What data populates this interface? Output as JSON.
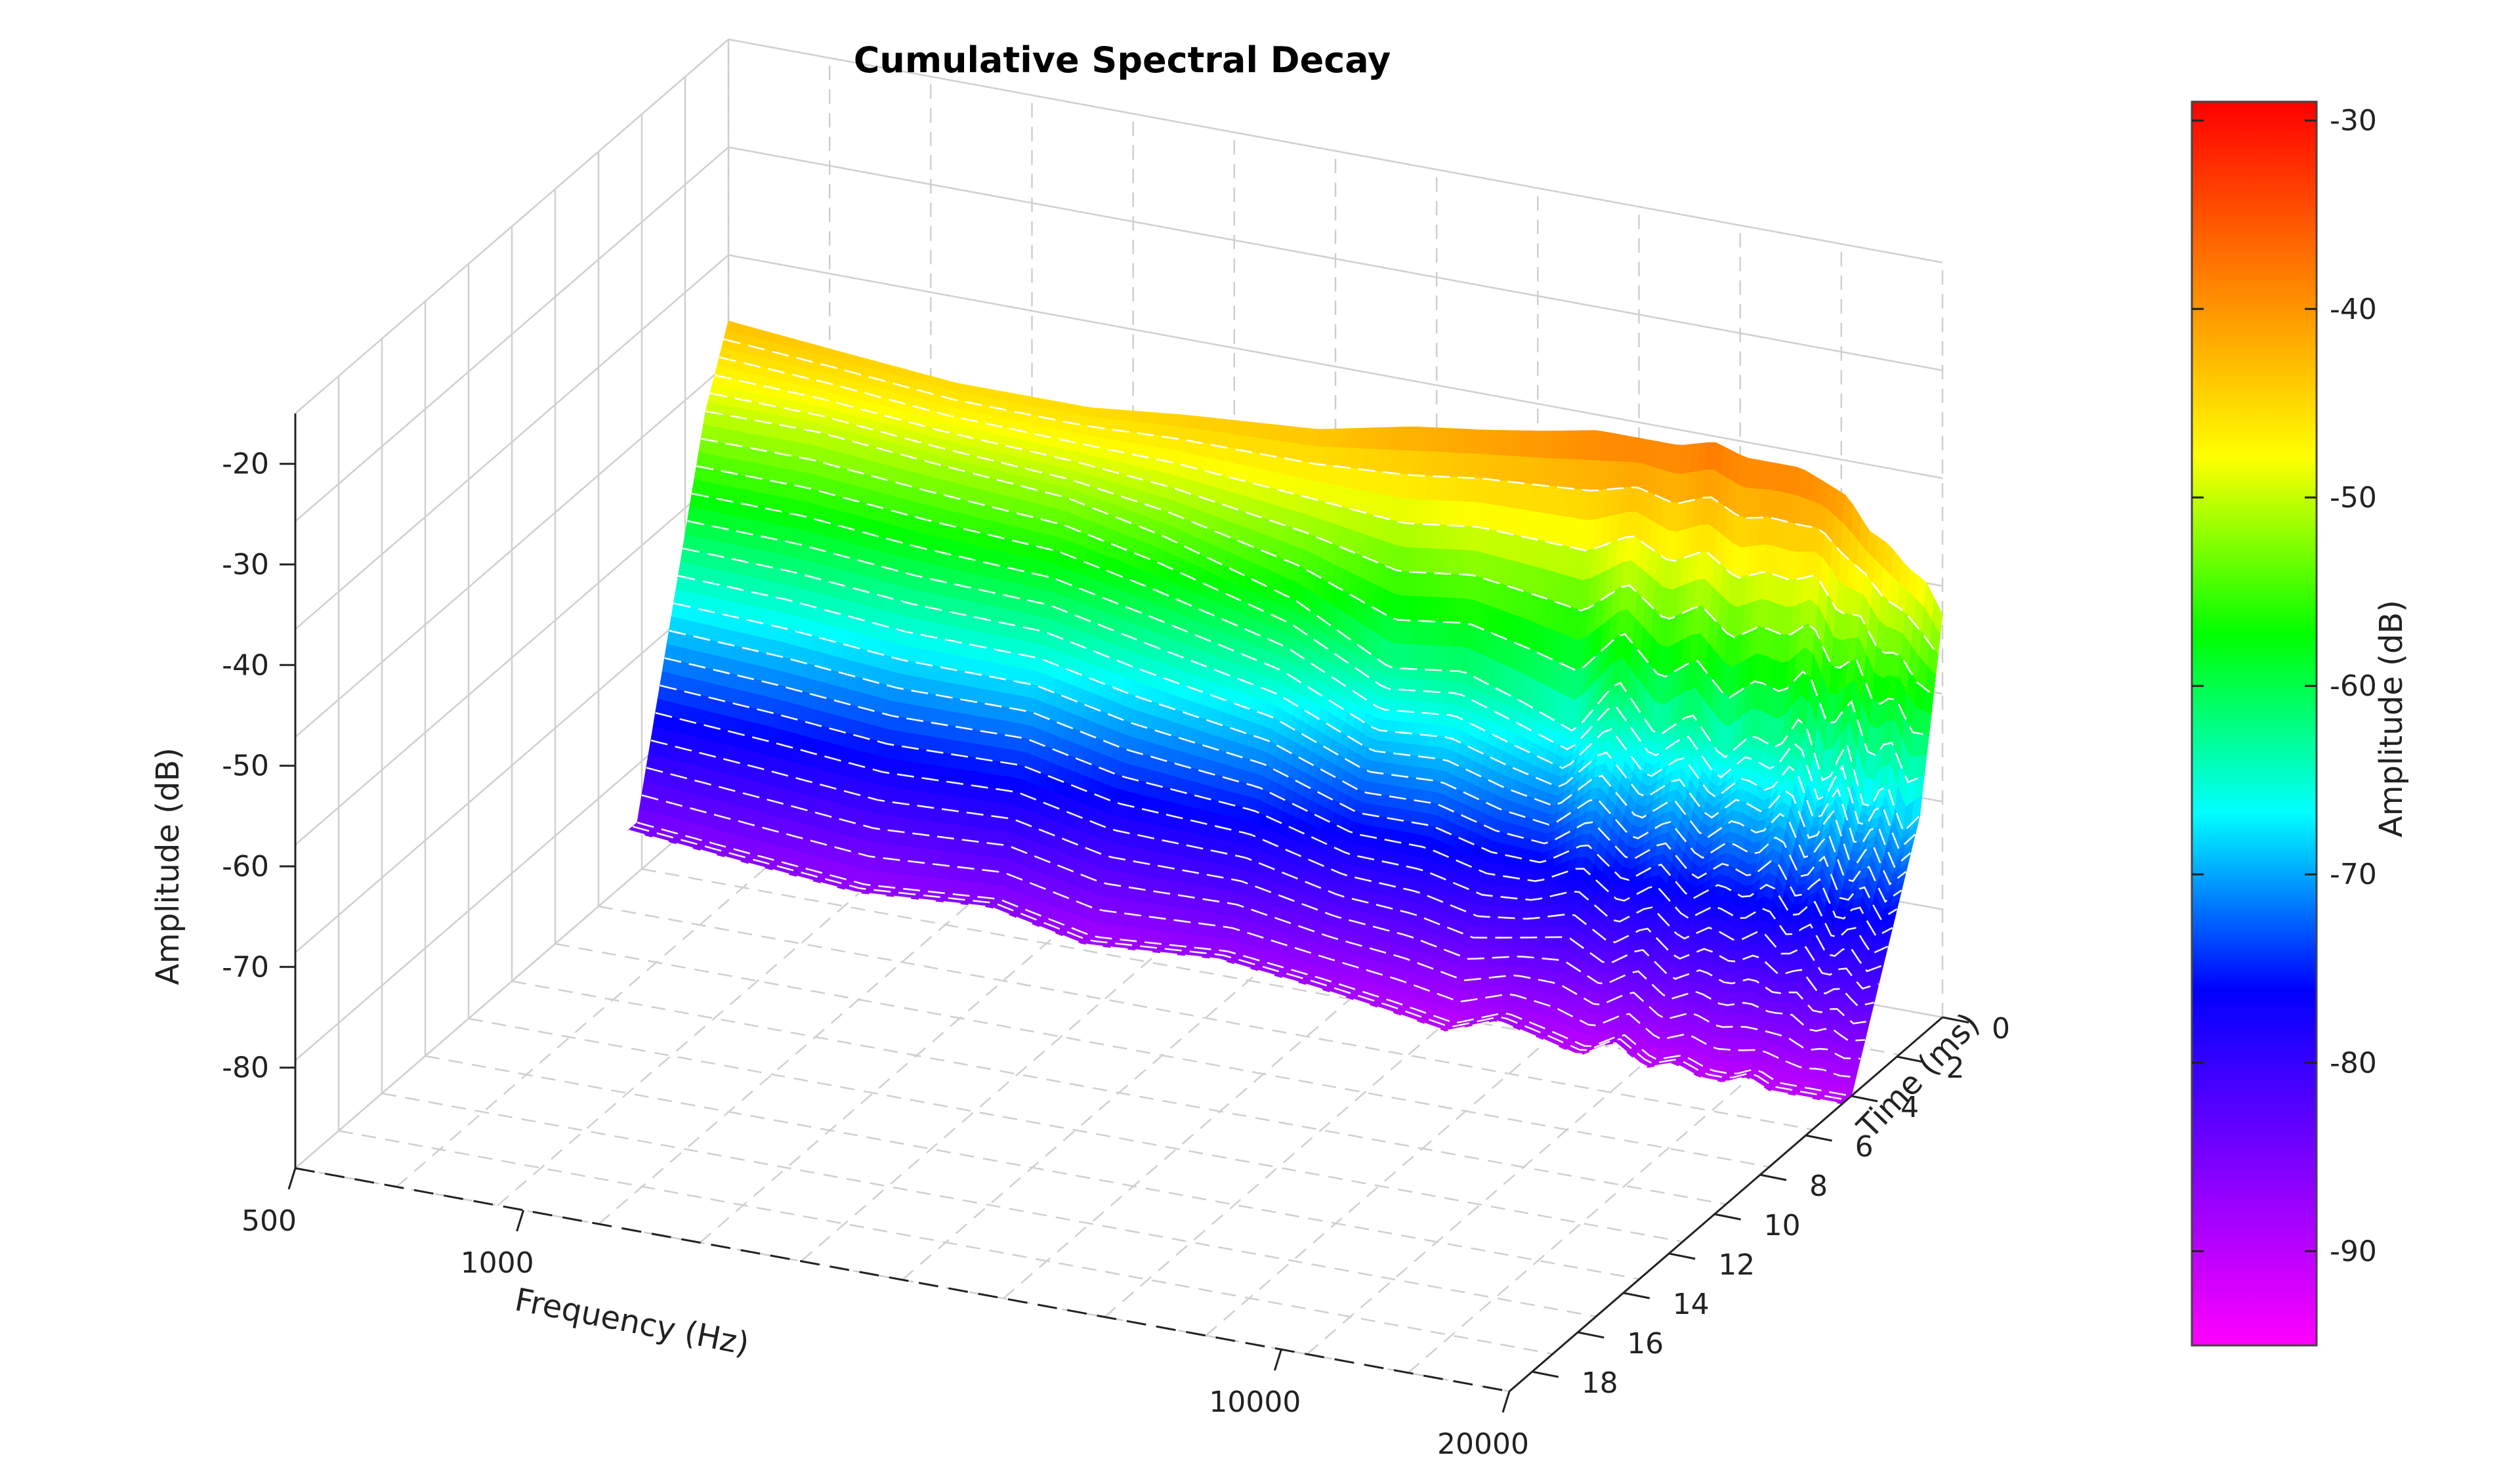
{
  "chart_data": {
    "type": "surface",
    "title": "Cumulative Spectral Decay",
    "xlabel": "Frequency (Hz)",
    "ylabel": "Time (ms)",
    "zlabel": "Amplitude (dB)",
    "colorbar_label": "Amplitude (dB)",
    "x_scale": "log",
    "xlim": [
      500,
      20000
    ],
    "x_ticks": [
      "500",
      "1000",
      "10000",
      "20000"
    ],
    "ylim": [
      0,
      19
    ],
    "y_ticks": [
      "0",
      "2",
      "4",
      "6",
      "8",
      "10",
      "12",
      "14",
      "16",
      "18"
    ],
    "zlim": [
      -90,
      -15
    ],
    "z_ticks": [
      "-20",
      "-30",
      "-40",
      "-50",
      "-60",
      "-70",
      "-80"
    ],
    "colorbar_range": [
      -95,
      -29
    ],
    "colorbar_ticks": [
      "-30",
      "-40",
      "-50",
      "-60",
      "-70",
      "-80",
      "-90"
    ],
    "colormap": [
      "#ff00ff",
      "#8000ff",
      "#0000ff",
      "#00ffff",
      "#00ff00",
      "#ffff00",
      "#ff8000",
      "#ff0000"
    ],
    "grid": true,
    "surface": {
      "frequencies_hz": [
        500,
        700,
        1000,
        1500,
        2000,
        3000,
        4000,
        5000,
        6000,
        7000,
        8000,
        9000,
        10000,
        11000,
        12000,
        13000,
        14000,
        15000,
        16000,
        17000,
        18000,
        19000,
        20000
      ],
      "amplitude_at_0ms_db": [
        -43,
        -44,
        -45,
        -45,
        -44,
        -43,
        -41,
        -40,
        -39,
        -38,
        -38,
        -38,
        -37,
        -38,
        -38,
        -38,
        -39,
        -40,
        -43,
        -44,
        -46,
        -47,
        -50
      ],
      "amplitude_at_1ms_db": [
        -50,
        -50,
        -51,
        -52,
        -54,
        -58,
        -63,
        -62,
        -64,
        -66,
        -60,
        -65,
        -62,
        -66,
        -63,
        -64,
        -60,
        -67,
        -62,
        -69,
        -65,
        -70,
        -68
      ],
      "amplitude_at_4ms_db": [
        -85,
        -86,
        -87,
        -86,
        -88,
        -87,
        -88,
        -89,
        -90,
        -88,
        -89,
        -90,
        -88,
        -90,
        -89,
        -90,
        -90,
        -89,
        -90,
        -90,
        -90,
        -90,
        -90
      ]
    }
  }
}
